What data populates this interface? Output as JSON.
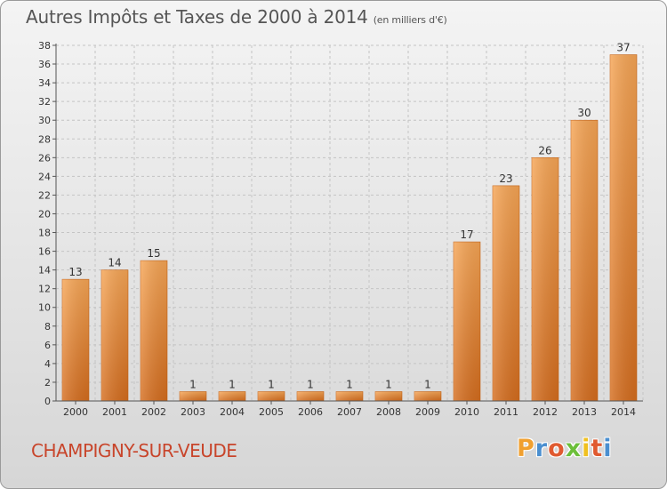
{
  "header": {
    "title": "Autres Impôts et Taxes de 2000 à 2014",
    "unit": "(en milliers d'€)"
  },
  "footer": {
    "town": "CHAMPIGNY-SUR-VEUDE",
    "logo_letters": [
      "P",
      "r",
      "o",
      "x",
      "i",
      "t",
      "i"
    ],
    "logo_colors": [
      "#f0a030",
      "#4a8fd0",
      "#e05a30",
      "#6cbf3a",
      "#f0c020",
      "#e05a30",
      "#4a8fd0"
    ]
  },
  "chart_data": {
    "type": "bar",
    "title": "Autres Impôts et Taxes de 2000 à 2014",
    "ylabel": "",
    "xlabel": "",
    "categories": [
      "2000",
      "2001",
      "2002",
      "2003",
      "2004",
      "2005",
      "2006",
      "2007",
      "2008",
      "2009",
      "2010",
      "2011",
      "2012",
      "2013",
      "2014"
    ],
    "values": [
      13,
      14,
      15,
      1,
      1,
      1,
      1,
      1,
      1,
      1,
      17,
      23,
      26,
      30,
      37
    ],
    "ylim": [
      0,
      38
    ],
    "yticks": [
      0,
      2,
      4,
      6,
      8,
      10,
      12,
      14,
      16,
      18,
      20,
      22,
      24,
      26,
      28,
      30,
      32,
      34,
      36,
      38
    ],
    "grid": true,
    "bar_color": "#e8822e"
  }
}
